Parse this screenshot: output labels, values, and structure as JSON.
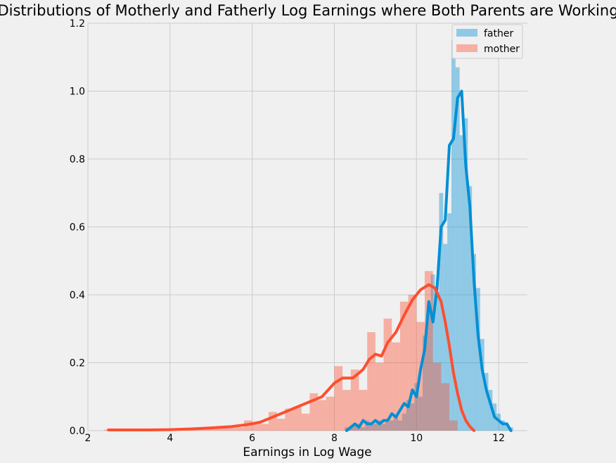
{
  "chart_data": {
    "type": "histogram+kde",
    "title": "Distributions of Motherly and Fatherly Log Earnings where Both Parents are Working",
    "xlabel": "Earnings in Log Wage",
    "ylabel": "",
    "xlim": [
      2,
      12.7
    ],
    "ylim": [
      0,
      1.2
    ],
    "x_ticks": [
      "2",
      "4",
      "6",
      "8",
      "10",
      "12"
    ],
    "y_ticks": [
      "0.0",
      "0.2",
      "0.4",
      "0.6",
      "0.8",
      "1.0",
      "1.2"
    ],
    "grid": true,
    "legend_position": "top-right",
    "colors": {
      "father": "#008fd5",
      "mother": "#fc4f30",
      "background": "#f0f0f0",
      "grid": "#cbcbcb"
    },
    "series": [
      {
        "name": "father",
        "bin_width": 0.1,
        "histogram": [
          {
            "x": 8.3,
            "y": 0.01
          },
          {
            "x": 8.4,
            "y": 0.01
          },
          {
            "x": 8.5,
            "y": 0.02
          },
          {
            "x": 8.6,
            "y": 0.02
          },
          {
            "x": 8.7,
            "y": 0.01
          },
          {
            "x": 8.8,
            "y": 0.03
          },
          {
            "x": 8.9,
            "y": 0.02
          },
          {
            "x": 9.0,
            "y": 0.02
          },
          {
            "x": 9.1,
            "y": 0.03
          },
          {
            "x": 9.2,
            "y": 0.02
          },
          {
            "x": 9.3,
            "y": 0.03
          },
          {
            "x": 9.4,
            "y": 0.03
          },
          {
            "x": 9.5,
            "y": 0.04
          },
          {
            "x": 9.6,
            "y": 0.03
          },
          {
            "x": 9.7,
            "y": 0.05
          },
          {
            "x": 9.8,
            "y": 0.09
          },
          {
            "x": 9.9,
            "y": 0.08
          },
          {
            "x": 10.0,
            "y": 0.14
          },
          {
            "x": 10.1,
            "y": 0.1
          },
          {
            "x": 10.2,
            "y": 0.28
          },
          {
            "x": 10.3,
            "y": 0.37
          },
          {
            "x": 10.4,
            "y": 0.46
          },
          {
            "x": 10.5,
            "y": 0.41
          },
          {
            "x": 10.6,
            "y": 0.7
          },
          {
            "x": 10.7,
            "y": 0.55
          },
          {
            "x": 10.8,
            "y": 0.64
          },
          {
            "x": 10.9,
            "y": 1.15
          },
          {
            "x": 11.0,
            "y": 1.07
          },
          {
            "x": 11.1,
            "y": 0.87
          },
          {
            "x": 11.2,
            "y": 0.92
          },
          {
            "x": 11.3,
            "y": 0.72
          },
          {
            "x": 11.4,
            "y": 0.52
          },
          {
            "x": 11.5,
            "y": 0.42
          },
          {
            "x": 11.6,
            "y": 0.27
          },
          {
            "x": 11.7,
            "y": 0.17
          },
          {
            "x": 11.8,
            "y": 0.12
          },
          {
            "x": 11.9,
            "y": 0.08
          },
          {
            "x": 12.0,
            "y": 0.05
          },
          {
            "x": 12.1,
            "y": 0.03
          },
          {
            "x": 12.2,
            "y": 0.02
          },
          {
            "x": 12.3,
            "y": 0.01
          }
        ],
        "kde": [
          [
            8.3,
            0.0
          ],
          [
            8.4,
            0.01
          ],
          [
            8.5,
            0.02
          ],
          [
            8.6,
            0.01
          ],
          [
            8.7,
            0.03
          ],
          [
            8.8,
            0.02
          ],
          [
            8.9,
            0.02
          ],
          [
            9.0,
            0.03
          ],
          [
            9.1,
            0.02
          ],
          [
            9.2,
            0.03
          ],
          [
            9.3,
            0.03
          ],
          [
            9.4,
            0.05
          ],
          [
            9.5,
            0.04
          ],
          [
            9.6,
            0.06
          ],
          [
            9.7,
            0.08
          ],
          [
            9.8,
            0.07
          ],
          [
            9.9,
            0.12
          ],
          [
            10.0,
            0.1
          ],
          [
            10.1,
            0.18
          ],
          [
            10.2,
            0.24
          ],
          [
            10.3,
            0.38
          ],
          [
            10.4,
            0.32
          ],
          [
            10.5,
            0.42
          ],
          [
            10.6,
            0.6
          ],
          [
            10.7,
            0.62
          ],
          [
            10.8,
            0.84
          ],
          [
            10.9,
            0.86
          ],
          [
            11.0,
            0.98
          ],
          [
            11.1,
            1.0
          ],
          [
            11.2,
            0.78
          ],
          [
            11.3,
            0.66
          ],
          [
            11.4,
            0.44
          ],
          [
            11.5,
            0.28
          ],
          [
            11.6,
            0.18
          ],
          [
            11.7,
            0.12
          ],
          [
            11.8,
            0.08
          ],
          [
            11.9,
            0.04
          ],
          [
            12.0,
            0.03
          ],
          [
            12.1,
            0.02
          ],
          [
            12.2,
            0.02
          ],
          [
            12.3,
            0.0
          ]
        ]
      },
      {
        "name": "mother",
        "bin_width": 0.2,
        "histogram": [
          {
            "x": 2.5,
            "y": 0.003
          },
          {
            "x": 2.7,
            "y": 0.003
          },
          {
            "x": 2.9,
            "y": 0.003
          },
          {
            "x": 3.1,
            "y": 0.003
          },
          {
            "x": 3.3,
            "y": 0.003
          },
          {
            "x": 3.5,
            "y": 0.003
          },
          {
            "x": 3.7,
            "y": 0.003
          },
          {
            "x": 3.9,
            "y": 0.003
          },
          {
            "x": 4.1,
            "y": 0.004
          },
          {
            "x": 4.3,
            "y": 0.005
          },
          {
            "x": 4.5,
            "y": 0.006
          },
          {
            "x": 4.7,
            "y": 0.006
          },
          {
            "x": 4.9,
            "y": 0.007
          },
          {
            "x": 5.1,
            "y": 0.008
          },
          {
            "x": 5.3,
            "y": 0.009
          },
          {
            "x": 5.5,
            "y": 0.009
          },
          {
            "x": 5.7,
            "y": 0.01
          },
          {
            "x": 5.9,
            "y": 0.03
          },
          {
            "x": 6.1,
            "y": 0.025
          },
          {
            "x": 6.3,
            "y": 0.02
          },
          {
            "x": 6.5,
            "y": 0.055
          },
          {
            "x": 6.7,
            "y": 0.035
          },
          {
            "x": 6.9,
            "y": 0.065
          },
          {
            "x": 7.1,
            "y": 0.07
          },
          {
            "x": 7.3,
            "y": 0.05
          },
          {
            "x": 7.5,
            "y": 0.11
          },
          {
            "x": 7.7,
            "y": 0.09
          },
          {
            "x": 7.9,
            "y": 0.1
          },
          {
            "x": 8.1,
            "y": 0.19
          },
          {
            "x": 8.3,
            "y": 0.12
          },
          {
            "x": 8.5,
            "y": 0.18
          },
          {
            "x": 8.7,
            "y": 0.12
          },
          {
            "x": 8.9,
            "y": 0.29
          },
          {
            "x": 9.1,
            "y": 0.2
          },
          {
            "x": 9.3,
            "y": 0.33
          },
          {
            "x": 9.5,
            "y": 0.26
          },
          {
            "x": 9.7,
            "y": 0.38
          },
          {
            "x": 9.9,
            "y": 0.4
          },
          {
            "x": 10.1,
            "y": 0.32
          },
          {
            "x": 10.3,
            "y": 0.47
          },
          {
            "x": 10.5,
            "y": 0.2
          },
          {
            "x": 10.7,
            "y": 0.14
          },
          {
            "x": 10.9,
            "y": 0.03
          }
        ],
        "kde": [
          [
            2.5,
            0.002
          ],
          [
            3.0,
            0.002
          ],
          [
            3.5,
            0.002
          ],
          [
            4.0,
            0.003
          ],
          [
            4.5,
            0.005
          ],
          [
            5.0,
            0.008
          ],
          [
            5.5,
            0.012
          ],
          [
            5.9,
            0.018
          ],
          [
            6.2,
            0.025
          ],
          [
            6.5,
            0.04
          ],
          [
            6.8,
            0.055
          ],
          [
            7.1,
            0.07
          ],
          [
            7.4,
            0.085
          ],
          [
            7.7,
            0.1
          ],
          [
            8.0,
            0.14
          ],
          [
            8.2,
            0.155
          ],
          [
            8.45,
            0.155
          ],
          [
            8.7,
            0.18
          ],
          [
            8.85,
            0.21
          ],
          [
            9.0,
            0.225
          ],
          [
            9.15,
            0.22
          ],
          [
            9.3,
            0.26
          ],
          [
            9.5,
            0.29
          ],
          [
            9.7,
            0.34
          ],
          [
            9.9,
            0.385
          ],
          [
            10.1,
            0.415
          ],
          [
            10.3,
            0.43
          ],
          [
            10.45,
            0.42
          ],
          [
            10.6,
            0.38
          ],
          [
            10.7,
            0.32
          ],
          [
            10.8,
            0.25
          ],
          [
            10.9,
            0.17
          ],
          [
            11.0,
            0.11
          ],
          [
            11.1,
            0.06
          ],
          [
            11.2,
            0.03
          ],
          [
            11.3,
            0.012
          ],
          [
            11.4,
            0.0
          ]
        ]
      }
    ]
  }
}
